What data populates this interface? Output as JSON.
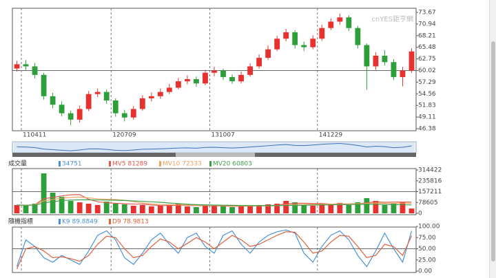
{
  "chart_data": [
    {
      "type": "candlestick",
      "watermark": "cnYES鉅亨網",
      "categories": [
        null,
        "110411",
        null,
        null,
        null,
        null,
        null,
        null,
        null,
        null,
        null,
        "120709",
        null,
        null,
        null,
        null,
        null,
        null,
        null,
        null,
        null,
        null,
        "131007",
        null,
        null,
        null,
        null,
        null,
        null,
        null,
        null,
        null,
        null,
        null,
        "141229",
        null,
        null,
        null,
        null,
        null,
        null,
        null,
        null,
        null,
        null
      ],
      "open": [
        60.5,
        61.5,
        61,
        59,
        54,
        52,
        50,
        48.5,
        51,
        54.5,
        55,
        53,
        50,
        49,
        51,
        53.5,
        54,
        55,
        56,
        57.5,
        58,
        57,
        59.5,
        60,
        58.5,
        57.5,
        59,
        61,
        63,
        65,
        67.5,
        69,
        66,
        65.5,
        67.5,
        70,
        71.5,
        72.5,
        70,
        66,
        61,
        63.5,
        62,
        58.5,
        60
      ],
      "high": [
        62.3,
        62.5,
        61.8,
        59.5,
        54.8,
        52.8,
        50.6,
        51.8,
        55.2,
        55.8,
        55.6,
        53.5,
        50.8,
        51.7,
        54.2,
        54.9,
        55.8,
        56.9,
        58.3,
        58.9,
        58.6,
        60.2,
        60.9,
        60.5,
        59.1,
        59.8,
        61.7,
        63.8,
        65.9,
        68.2,
        69.8,
        69.5,
        66.8,
        68.3,
        70.8,
        72.3,
        73.4,
        73,
        70.5,
        66.4,
        64.3,
        64.8,
        62.7,
        60.9,
        65.2
      ],
      "low": [
        59.8,
        60.2,
        58.2,
        53.2,
        51.2,
        49.3,
        47.2,
        47.8,
        50.5,
        53.8,
        52.2,
        49.2,
        48.1,
        48.5,
        50.6,
        52.8,
        53.4,
        54.5,
        55.6,
        56.8,
        56.2,
        56.6,
        58.7,
        57.8,
        56.9,
        57,
        58.6,
        60.5,
        62.5,
        64.6,
        66.9,
        65.2,
        64.6,
        65,
        67,
        69.5,
        70.8,
        69.3,
        65.2,
        55.5,
        60.2,
        61.2,
        57.8,
        56.3,
        59.5
      ],
      "close": [
        61.5,
        61,
        59,
        54,
        52,
        50,
        48.5,
        51,
        54.5,
        55,
        53,
        50,
        49,
        51,
        53.5,
        54,
        55,
        56,
        57.5,
        58,
        57,
        59.5,
        60,
        58.5,
        57.5,
        59,
        61,
        63,
        65,
        67.5,
        69,
        66,
        65.5,
        67.5,
        70,
        71.5,
        72.5,
        70,
        66,
        61,
        63.5,
        62,
        58.5,
        60,
        64.5
      ],
      "up_color": "#e8312f",
      "down_color": "#2e9e3a",
      "ylim": [
        46.38,
        73.67
      ],
      "yticks": [
        46.38,
        49.11,
        51.83,
        54.56,
        57.29,
        60.02,
        62.75,
        65.48,
        68.21,
        70.94,
        73.67
      ],
      "hline": 60.02
    },
    {
      "type": "bar",
      "title": "成交量",
      "name": "34751",
      "color": "#4a90d9",
      "values": [
        60000,
        55000,
        70000,
        290000,
        150000,
        120000,
        90000,
        80000,
        70000,
        60000,
        85000,
        70000,
        65000,
        55000,
        60000,
        50000,
        55000,
        60000,
        70000,
        50000,
        45000,
        55000,
        60000,
        50000,
        45000,
        50000,
        55000,
        60000,
        65000,
        70000,
        90000,
        80000,
        60000,
        55000,
        70000,
        60000,
        75000,
        60000,
        80000,
        110000,
        90000,
        60000,
        70000,
        80000,
        34751
      ],
      "series": [
        {
          "name": "MV5 81289",
          "color": "#e05a4f",
          "values": [
            60000,
            58000,
            62000,
            106000,
            115000,
            127000,
            134000,
            136000,
            102000,
            84000,
            77000,
            73000,
            70000,
            67000,
            67000,
            60000,
            57000,
            56000,
            59000,
            57000,
            56000,
            56000,
            56000,
            52000,
            51000,
            52000,
            53000,
            54000,
            55000,
            60000,
            68000,
            73000,
            73000,
            71000,
            71000,
            67000,
            64000,
            64000,
            69000,
            77000,
            83000,
            80000,
            82000,
            82000,
            81289
          ]
        },
        {
          "name": "MV10 72333",
          "color": "#f0a35e",
          "values": [
            60000,
            58000,
            62000,
            90000,
            100000,
            110000,
            115000,
            118000,
            112000,
            105000,
            102000,
            100000,
            95000,
            85000,
            75000,
            68000,
            64000,
            62000,
            62000,
            60000,
            58000,
            57000,
            57000,
            56000,
            55000,
            54000,
            54000,
            54000,
            54000,
            56000,
            60000,
            63000,
            64000,
            65000,
            66000,
            67000,
            69000,
            69000,
            70000,
            72000,
            74000,
            72000,
            73000,
            74000,
            72333
          ]
        },
        {
          "name": "MV20 60803",
          "color": "#3f9e4a",
          "values": [
            60000,
            59000,
            60000,
            75000,
            85000,
            92000,
            96000,
            98000,
            98000,
            97000,
            96000,
            95000,
            93000,
            90000,
            87000,
            84000,
            80000,
            75000,
            70000,
            66000,
            63000,
            61000,
            60000,
            59000,
            58000,
            57000,
            56000,
            56000,
            56000,
            56000,
            57000,
            58000,
            59000,
            60000,
            61000,
            62000,
            63000,
            64000,
            65000,
            66000,
            65000,
            64000,
            63000,
            62000,
            60803
          ]
        }
      ],
      "ylim": [
        0,
        314422
      ],
      "yticks": [
        0,
        78605,
        157211,
        235816,
        314422
      ],
      "hline": 157211
    },
    {
      "type": "line",
      "title": "隨機指標",
      "series": [
        {
          "name": "K9 89.8849",
          "color": "#4a90d9",
          "values": [
            10,
            70,
            55,
            30,
            20,
            35,
            25,
            15,
            45,
            80,
            90,
            70,
            30,
            15,
            40,
            70,
            85,
            60,
            40,
            75,
            85,
            55,
            40,
            80,
            90,
            60,
            40,
            65,
            80,
            88,
            92,
            85,
            40,
            20,
            55,
            80,
            90,
            70,
            35,
            10,
            45,
            85,
            50,
            20,
            89.8849
          ]
        },
        {
          "name": "D9 78.9813",
          "color": "#e0603a",
          "values": [
            5,
            50,
            55,
            45,
            30,
            32,
            28,
            22,
            35,
            60,
            78,
            75,
            50,
            30,
            35,
            55,
            72,
            65,
            50,
            62,
            75,
            65,
            50,
            65,
            80,
            70,
            55,
            60,
            70,
            80,
            88,
            87,
            65,
            40,
            45,
            65,
            80,
            78,
            55,
            30,
            35,
            60,
            55,
            35,
            78.9813
          ]
        }
      ],
      "ylim": [
        0,
        100
      ],
      "yticks": [
        {
          "value": 0,
          "label": "0.00"
        },
        {
          "value": 25,
          "label": "25.00"
        },
        {
          "value": 50,
          "label": "50.00"
        },
        {
          "value": 75,
          "label": "75.00"
        },
        {
          "value": 100,
          "label": "100.00"
        }
      ],
      "hline": 50
    }
  ]
}
